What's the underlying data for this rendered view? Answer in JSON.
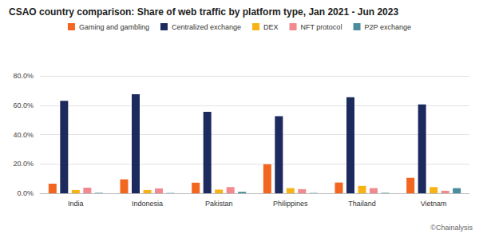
{
  "chart_data": {
    "type": "bar",
    "title": "CSAO country comparison: Share of web traffic by platform type, Jan 2021 - Jun 2023",
    "annotations": [
      "©Chainalysis"
    ],
    "categories": [
      "India",
      "Indonesia",
      "Pakistan",
      "Philippines",
      "Thailand",
      "Vietnam"
    ],
    "series": [
      {
        "name": "Gaming and gambling",
        "color": "#f2661f",
        "values": [
          6.5,
          9.5,
          7.2,
          19.8,
          7.3,
          10.5
        ]
      },
      {
        "name": "Centralized exchange",
        "color": "#1c2a5e",
        "values": [
          63.0,
          67.5,
          55.5,
          52.5,
          65.5,
          60.5
        ]
      },
      {
        "name": "DEX",
        "color": "#f7b316",
        "values": [
          2.2,
          2.2,
          2.5,
          3.5,
          5.0,
          4.2
        ]
      },
      {
        "name": "NFT protocol",
        "color": "#f2898f",
        "values": [
          3.8,
          3.3,
          4.2,
          2.8,
          3.5,
          1.7
        ]
      },
      {
        "name": "P2P exchange",
        "color": "#4a8c9e",
        "values": [
          0.3,
          0.2,
          1.0,
          0.2,
          0.3,
          3.5
        ]
      }
    ],
    "ylim": [
      0,
      80
    ],
    "yticks": [
      {
        "value": 0,
        "label": "0.0%"
      },
      {
        "value": 20,
        "label": "20.0%"
      },
      {
        "value": 40,
        "label": "40.0%"
      },
      {
        "value": 60,
        "label": "60.0%"
      },
      {
        "value": 80,
        "label": "80.0%"
      }
    ],
    "grid": true,
    "legend": "top"
  }
}
